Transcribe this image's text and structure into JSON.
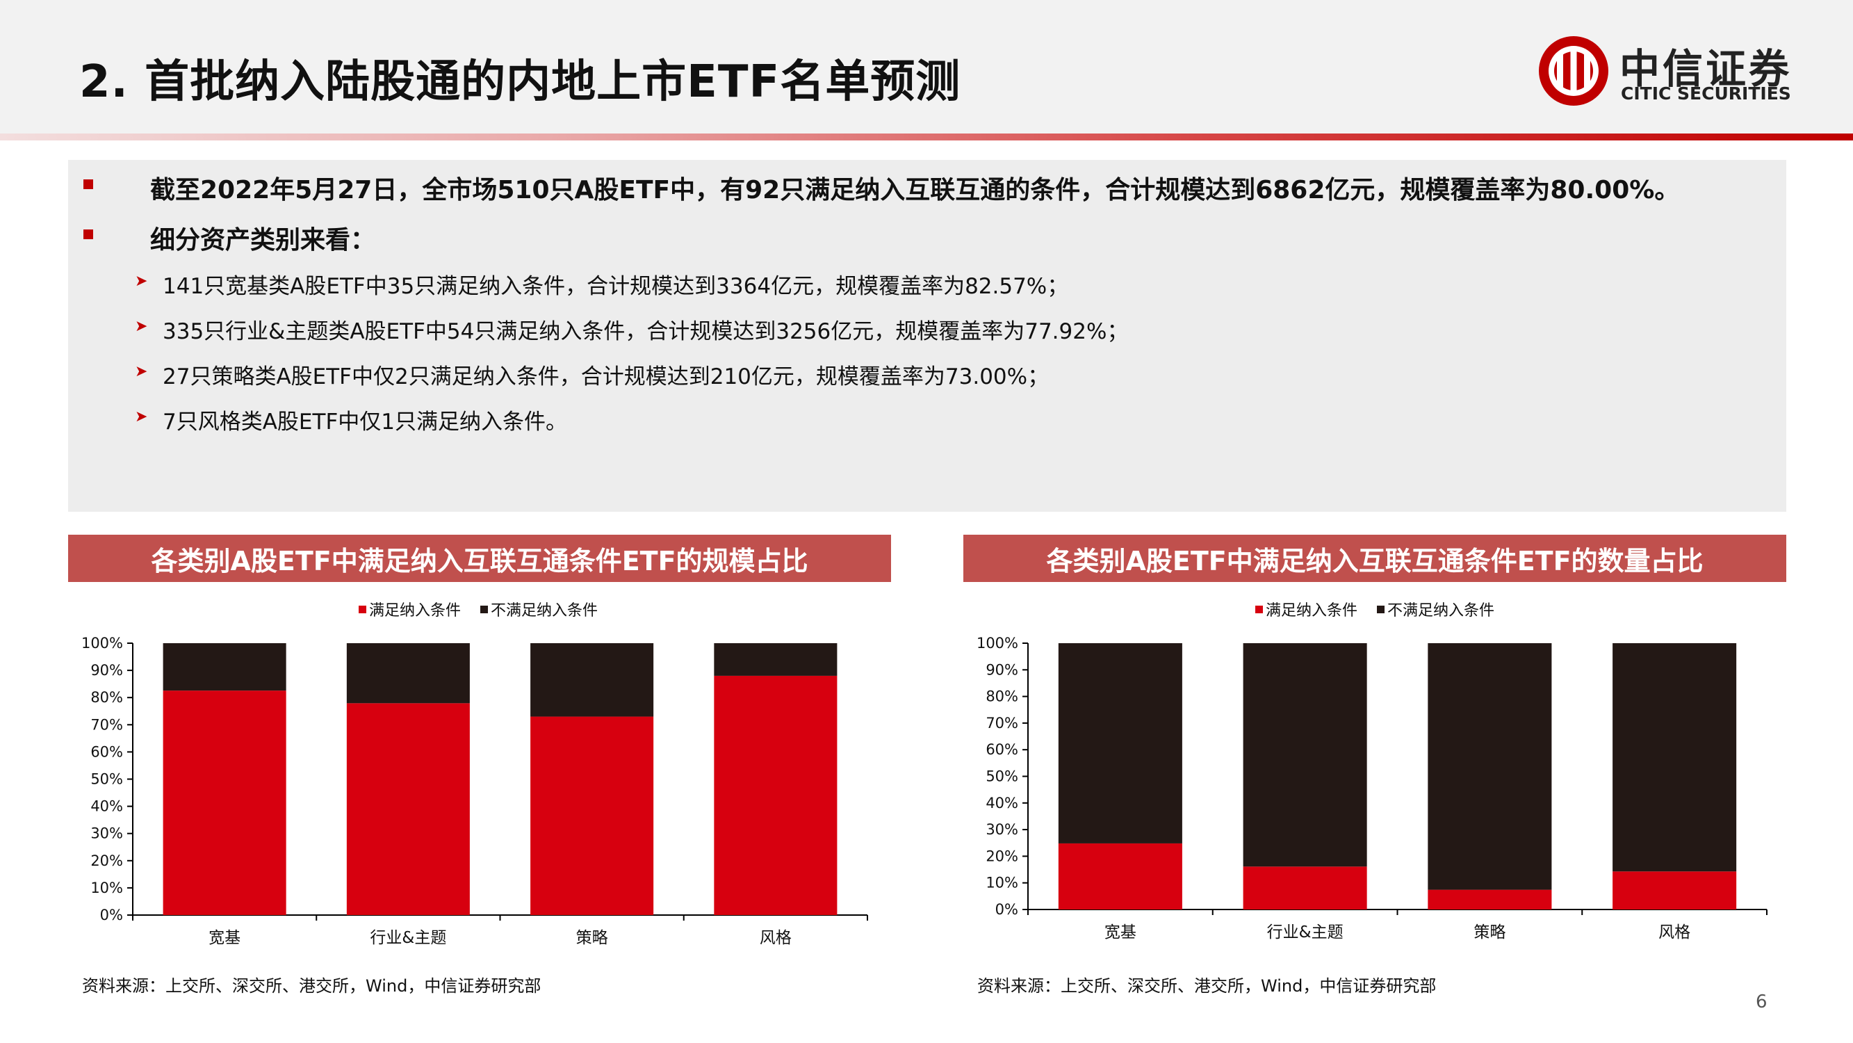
{
  "header": {
    "title": "2. 首批纳入陆股通的内地上市ETF名单预测",
    "logo_cn": "中信证券",
    "logo_en": "CITIC SECURITIES"
  },
  "summary": {
    "bullets": [
      "截至2022年5月27日，全市场510只A股ETF中，有92只满足纳入互联互通的条件，合计规模达到6862亿元，规模覆盖率为80.00%。",
      "细分资产类别来看："
    ],
    "sub_items": [
      "141只宽基类A股ETF中35只满足纳入条件，合计规模达到3364亿元，规模覆盖率为82.57%；",
      "335只行业&主题类A股ETF中54只满足纳入条件，合计规模达到3256亿元，规模覆盖率为77.92%；",
      "27只策略类A股ETF中仅2只满足纳入条件，合计规模达到210亿元，规模覆盖率为73.00%；",
      "7只风格类A股ETF中仅1只满足纳入条件。"
    ]
  },
  "panels": [
    {
      "title": "各类别A股ETF中满足纳入互联互通条件ETF的规模占比",
      "source": "资料来源：上交所、深交所、港交所，Wind，中信证券研究部"
    },
    {
      "title": "各类别A股ETF中满足纳入互联互通条件ETF的数量占比",
      "source": "资料来源：上交所、深交所、港交所，Wind，中信证券研究部"
    }
  ],
  "page_number": "6",
  "colors": {
    "meet": "#d7000f",
    "not_meet": "#231815",
    "panel_title_bg": "#c0504d",
    "accent": "#c00000"
  },
  "chart_data": [
    {
      "type": "bar",
      "stacked": true,
      "categories": [
        "宽基",
        "行业&主题",
        "策略",
        "风格"
      ],
      "series": [
        {
          "name": "满足纳入条件",
          "values": [
            82.57,
            77.92,
            73.0,
            88.0
          ]
        },
        {
          "name": "不满足纳入条件",
          "values": [
            17.43,
            22.08,
            27.0,
            12.0
          ]
        }
      ],
      "ylim": [
        0,
        100
      ],
      "yticks": [
        "0%",
        "10%",
        "20%",
        "30%",
        "40%",
        "50%",
        "60%",
        "70%",
        "80%",
        "90%",
        "100%"
      ],
      "legend": "top-center",
      "grid": false
    },
    {
      "type": "bar",
      "stacked": true,
      "categories": [
        "宽基",
        "行业&主题",
        "策略",
        "风格"
      ],
      "series": [
        {
          "name": "满足纳入条件",
          "values": [
            24.82,
            16.12,
            7.41,
            14.29
          ]
        },
        {
          "name": "不满足纳入条件",
          "values": [
            75.18,
            83.88,
            92.59,
            85.71
          ]
        }
      ],
      "ylim": [
        0,
        100
      ],
      "yticks": [
        "0%",
        "10%",
        "20%",
        "30%",
        "40%",
        "50%",
        "60%",
        "70%",
        "80%",
        "90%",
        "100%"
      ],
      "legend": "top-center",
      "grid": false
    }
  ]
}
